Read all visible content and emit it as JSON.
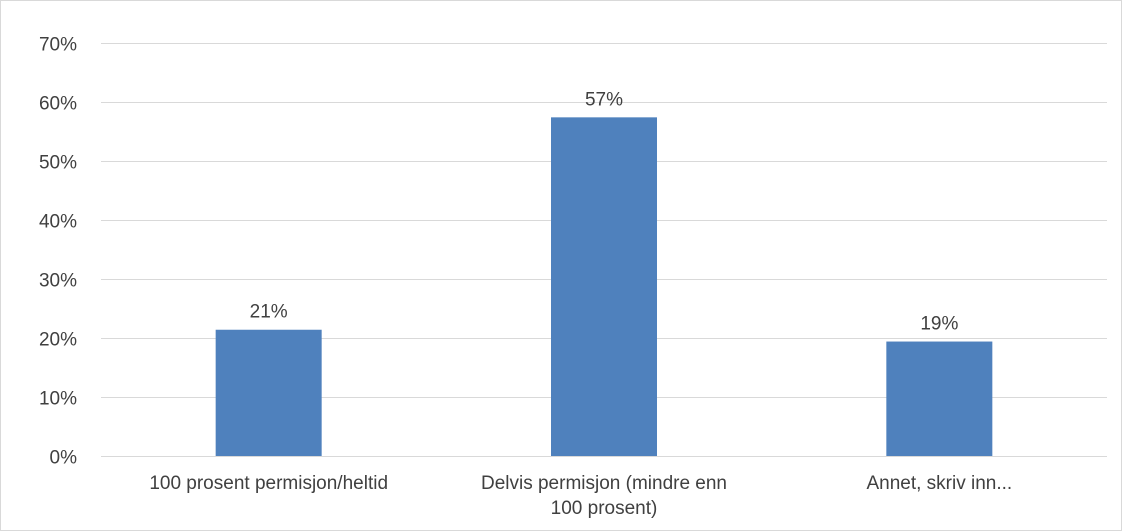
{
  "chart_data": {
    "type": "bar",
    "title": "",
    "xlabel": "",
    "ylabel": "",
    "categories": [
      [
        "100 prosent permisjon/heltid"
      ],
      [
        "Delvis permisjon (mindre enn",
        "100 prosent)"
      ],
      [
        "Annet, skriv inn..."
      ]
    ],
    "values": [
      21.4,
      57.4,
      19.4
    ],
    "data_labels": [
      "21%",
      "57%",
      "19%"
    ],
    "ylim": [
      0,
      70
    ],
    "yticks": [
      0,
      10,
      20,
      30,
      40,
      50,
      60,
      70
    ],
    "ytick_labels": [
      "0%",
      "10%",
      "20%",
      "30%",
      "40%",
      "50%",
      "60%",
      "70%"
    ],
    "grid": true,
    "legend": "none",
    "bar_color": "#4f81bd",
    "grid_color": "#d9d9d9",
    "text_color": "#404040"
  }
}
